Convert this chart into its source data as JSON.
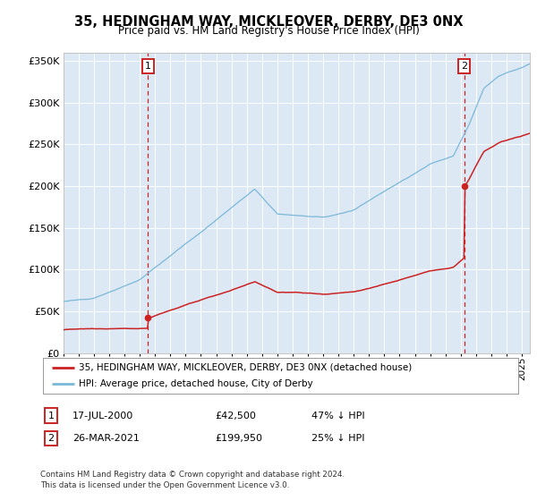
{
  "title": "35, HEDINGHAM WAY, MICKLEOVER, DERBY, DE3 0NX",
  "subtitle": "Price paid vs. HM Land Registry's House Price Index (HPI)",
  "legend_line1": "35, HEDINGHAM WAY, MICKLEOVER, DERBY, DE3 0NX (detached house)",
  "legend_line2": "HPI: Average price, detached house, City of Derby",
  "transaction1_date": "17-JUL-2000",
  "transaction1_price": "£42,500",
  "transaction1_pct": "47% ↓ HPI",
  "transaction2_date": "26-MAR-2021",
  "transaction2_price": "£199,950",
  "transaction2_pct": "25% ↓ HPI",
  "footnote": "Contains HM Land Registry data © Crown copyright and database right 2024.\nThis data is licensed under the Open Government Licence v3.0.",
  "hpi_color": "#7ab8d9",
  "price_color": "#cc2222",
  "vline_color": "#cc2222",
  "background_color": "#dce8f4",
  "ylim": [
    0,
    360000
  ],
  "yticks": [
    0,
    50000,
    100000,
    150000,
    200000,
    250000,
    300000,
    350000
  ],
  "xlim_start": 1995.0,
  "xlim_end": 2025.5,
  "transaction1_x": 2000.54,
  "transaction2_x": 2021.23,
  "transaction1_y": 42500,
  "transaction2_y": 199950,
  "hpi_1995": 62000,
  "hpi_2000": 90000,
  "hpi_2007_peak": 200000,
  "hpi_2009_trough": 170000,
  "hpi_2013": 170000,
  "hpi_2021": 268000,
  "hpi_2025": 350000
}
